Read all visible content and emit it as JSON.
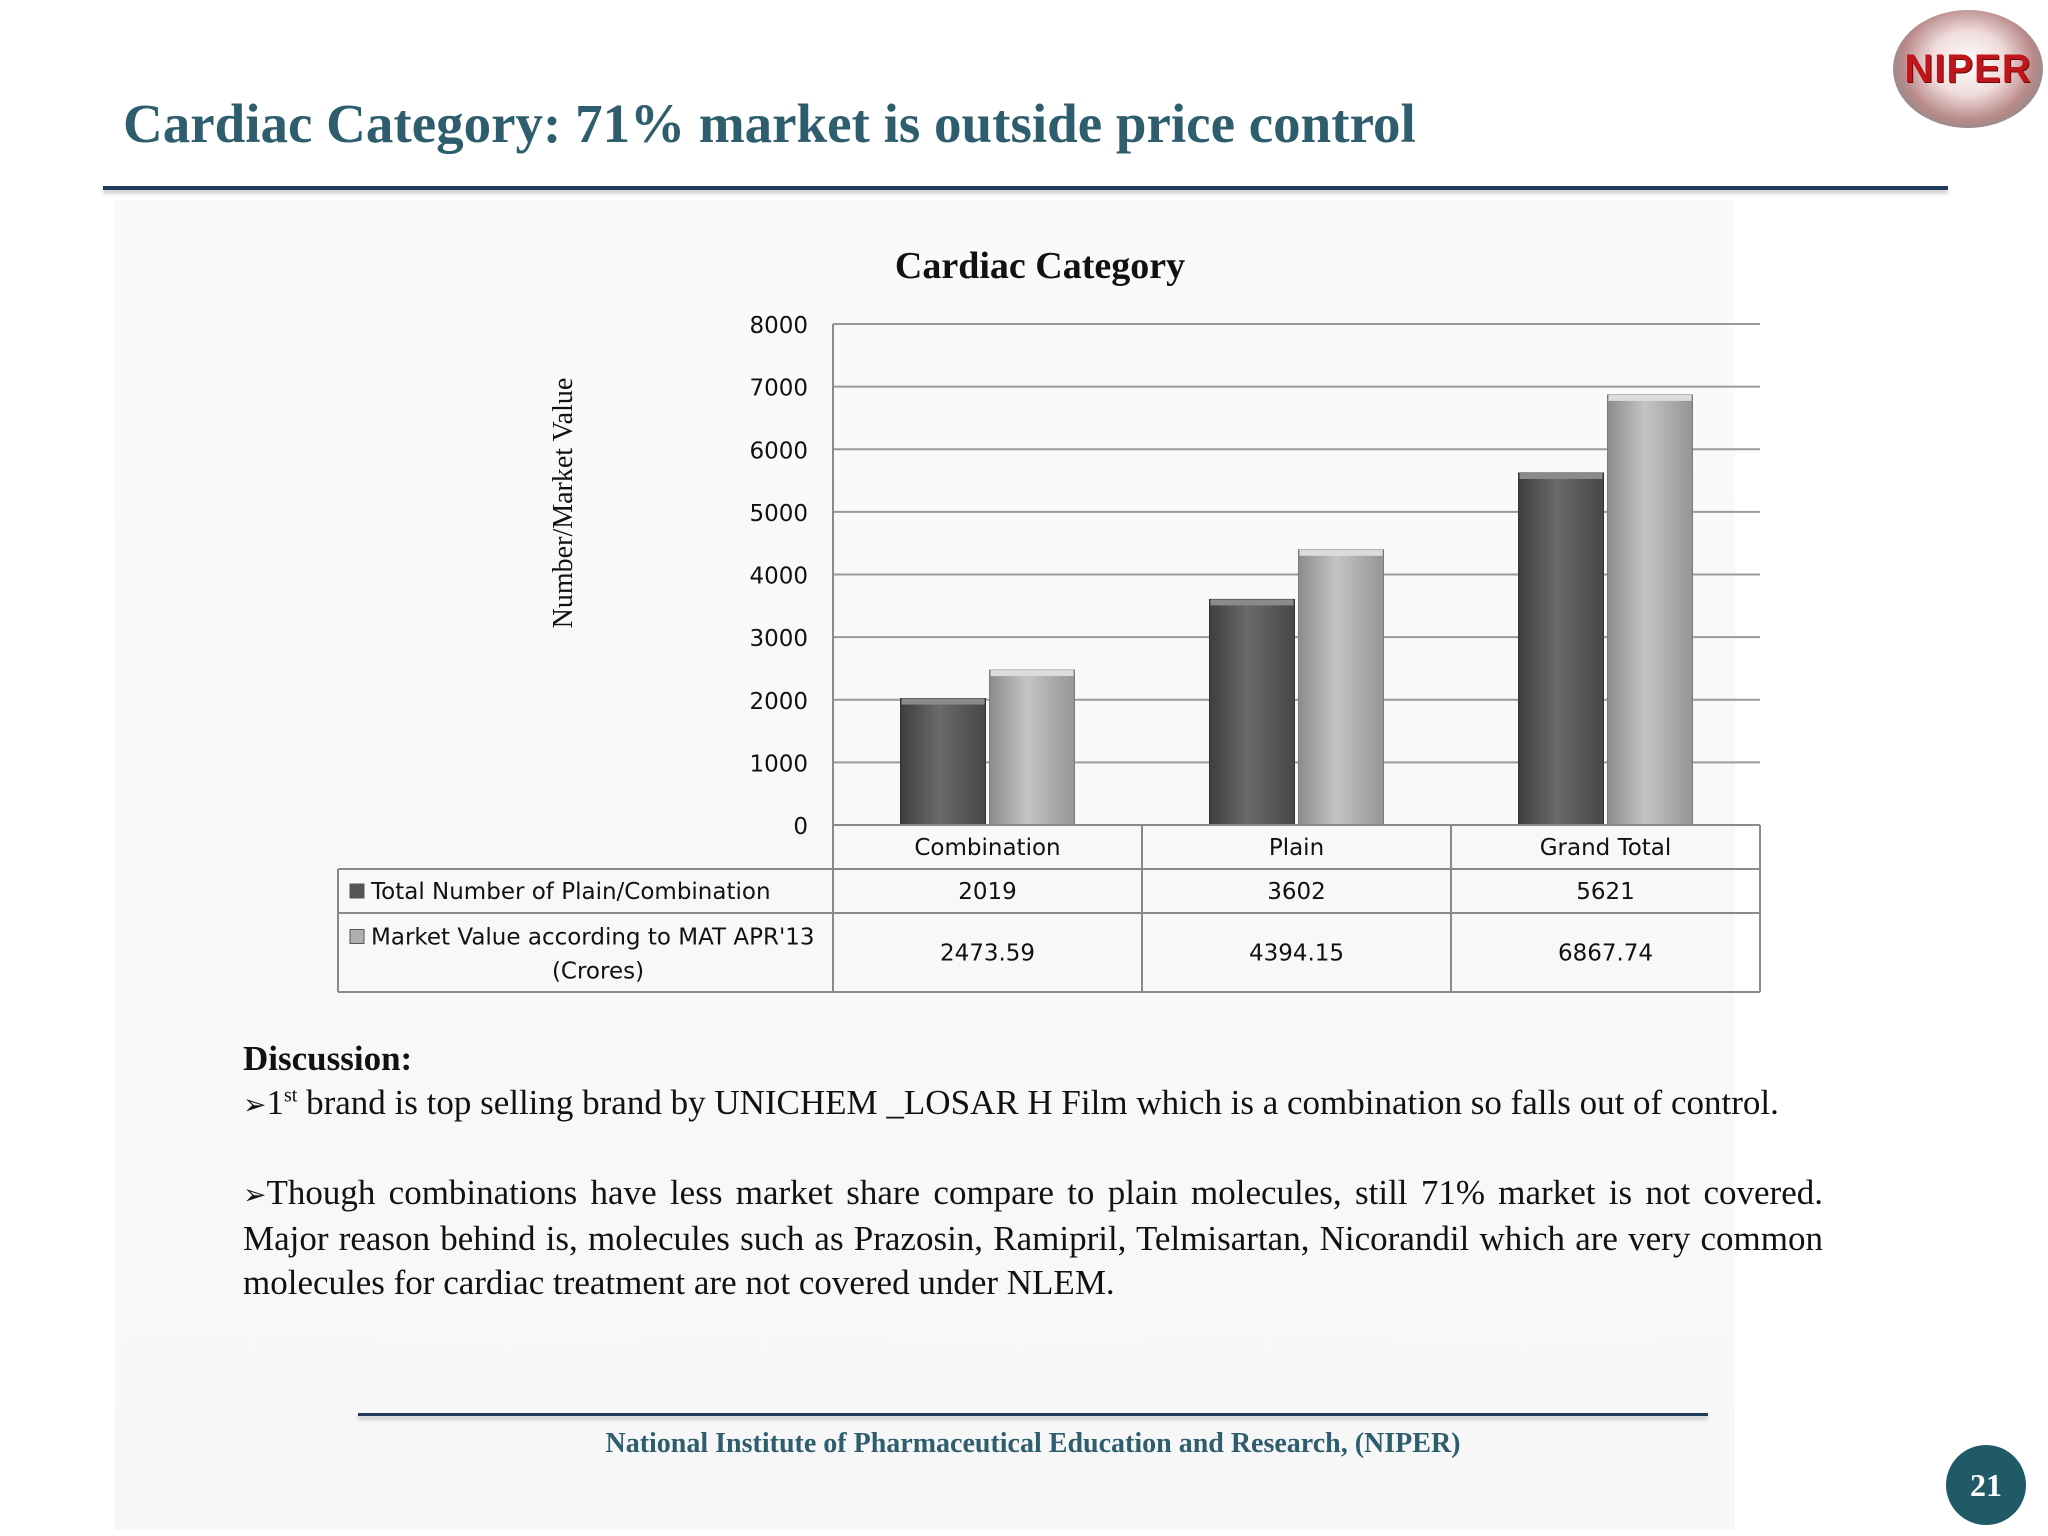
{
  "slide": {
    "title": "Cardiac Category: 71% market  is outside price control",
    "logo_text": "NIPER",
    "footer": "National Institute of Pharmaceutical Education and Research, (NIPER)",
    "page_number": "21",
    "colors": {
      "title": "#2e5e6e",
      "rule": "#1f3a5a",
      "badge": "#1f5a66",
      "logo_red": "#c0161b"
    }
  },
  "chart_data": {
    "type": "bar",
    "title": "Cardiac Category",
    "ylabel": "Number/Market Value",
    "xlabel": "",
    "ylim": [
      0,
      8000
    ],
    "yticks": [
      "0",
      "1000",
      "2000",
      "3000",
      "4000",
      "5000",
      "6000",
      "7000",
      "8000"
    ],
    "categories": [
      "Combination",
      "Plain",
      "Grand Total"
    ],
    "series": [
      {
        "name": "Total Number of Plain/Combination",
        "values": [
          2019,
          3602,
          5621
        ],
        "labels": [
          "2019",
          "3602",
          "5621"
        ],
        "color": "#555555"
      },
      {
        "name": "Market Value according to MAT APR'13 (Crores)",
        "name_lines": [
          "Market Value according to MAT APR'13",
          "(Crores)"
        ],
        "values": [
          2473.59,
          4394.15,
          6867.74
        ],
        "labels": [
          "2473.59",
          "4394.15",
          "6867.74"
        ],
        "color": "#a8a8a8"
      }
    ],
    "grid": true,
    "legend": "data-table"
  },
  "discussion": {
    "heading": "Discussion:",
    "bullet1_num": "1",
    "bullet1_sup": "st",
    "bullet1_text": "  brand is top selling brand by UNICHEM _LOSAR H Film which is a combination so falls out of control.",
    "bullet2_text": "Though combinations have less market share compare to plain molecules, still 71% market is not covered. Major reason  behind  is, molecules such as Prazosin, Ramipril, Telmisartan, Nicorandil which are very common molecules for cardiac treatment are not covered under NLEM."
  }
}
